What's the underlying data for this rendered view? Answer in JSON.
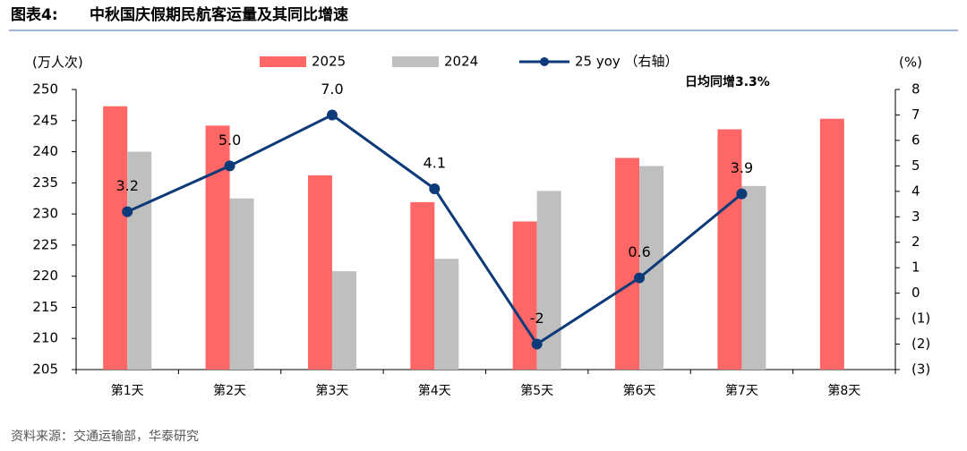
{
  "figure_label": "图表4:",
  "source": "资料来源：交通运输部，华泰研究",
  "chart_data": {
    "type": "bar",
    "title": "中秋国庆假期民航客运量及其同比增速",
    "y_label": "(万人次)",
    "y2_label": "(%)",
    "annotation": "日均同增3.3%",
    "categories": [
      "第1天",
      "第2天",
      "第3天",
      "第4天",
      "第5天",
      "第6天",
      "第7天",
      "第8天"
    ],
    "series": [
      {
        "name": "2025",
        "type": "bar",
        "color": "#ff6666",
        "values": [
          247.3,
          244.2,
          236.2,
          231.9,
          228.8,
          239.0,
          243.6,
          245.3
        ]
      },
      {
        "name": "2024",
        "type": "bar",
        "color": "#bfbfbf",
        "values": [
          240.0,
          232.5,
          220.8,
          222.8,
          233.7,
          237.7,
          234.5,
          null
        ]
      },
      {
        "name": "25 yoy （右轴）",
        "type": "line",
        "axis": "y2",
        "color": "#0d3a78",
        "values": [
          3.2,
          5.0,
          7.0,
          4.1,
          -2,
          0.6,
          3.9,
          null
        ],
        "value_labels": [
          "3.2",
          "5.0",
          "7.0",
          "4.1",
          "-2",
          "0.6",
          "3.9",
          null
        ]
      }
    ],
    "ylim": [
      205,
      250
    ],
    "yticks": [
      205,
      210,
      215,
      220,
      225,
      230,
      235,
      240,
      245,
      250
    ],
    "y2lim": [
      -3,
      8
    ],
    "y2ticks": [
      {
        "value": -3,
        "label": "(3)"
      },
      {
        "value": -2,
        "label": "(2)"
      },
      {
        "value": -1,
        "label": "(1)"
      },
      0,
      1,
      2,
      3,
      4,
      5,
      6,
      7,
      8
    ]
  }
}
